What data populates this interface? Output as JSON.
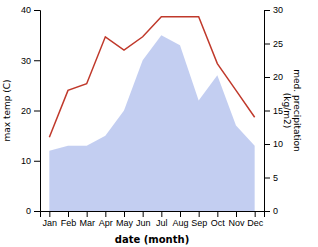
{
  "chart_data": {
    "type": "line",
    "xlabel": "date (month)",
    "ylabel": "max temp (C)",
    "y2label": "med. precipitation\n(kg/m2)",
    "categories": [
      "Jan",
      "Feb",
      "Mar",
      "Apr",
      "May",
      "Jun",
      "Jul",
      "Aug",
      "Sep",
      "Oct",
      "Nov",
      "Dec"
    ],
    "series": [
      {
        "type": "area",
        "color": "#b8c5ee",
        "values": [
          12,
          13,
          13,
          15,
          20,
          30,
          35,
          33,
          22,
          27,
          17,
          13
        ]
      },
      {
        "type": "line",
        "color": "#c0392b",
        "axis": "y2",
        "values": [
          11,
          18,
          19,
          26,
          24,
          26,
          29,
          29,
          29,
          22,
          18,
          14
        ]
      }
    ],
    "ylim": [
      0,
      40
    ],
    "yticks": [
      0,
      10,
      20,
      30,
      40
    ],
    "y2lim": [
      0,
      30
    ],
    "y2ticks": [
      0,
      5,
      10,
      15,
      20,
      25,
      30
    ],
    "grid": false
  }
}
